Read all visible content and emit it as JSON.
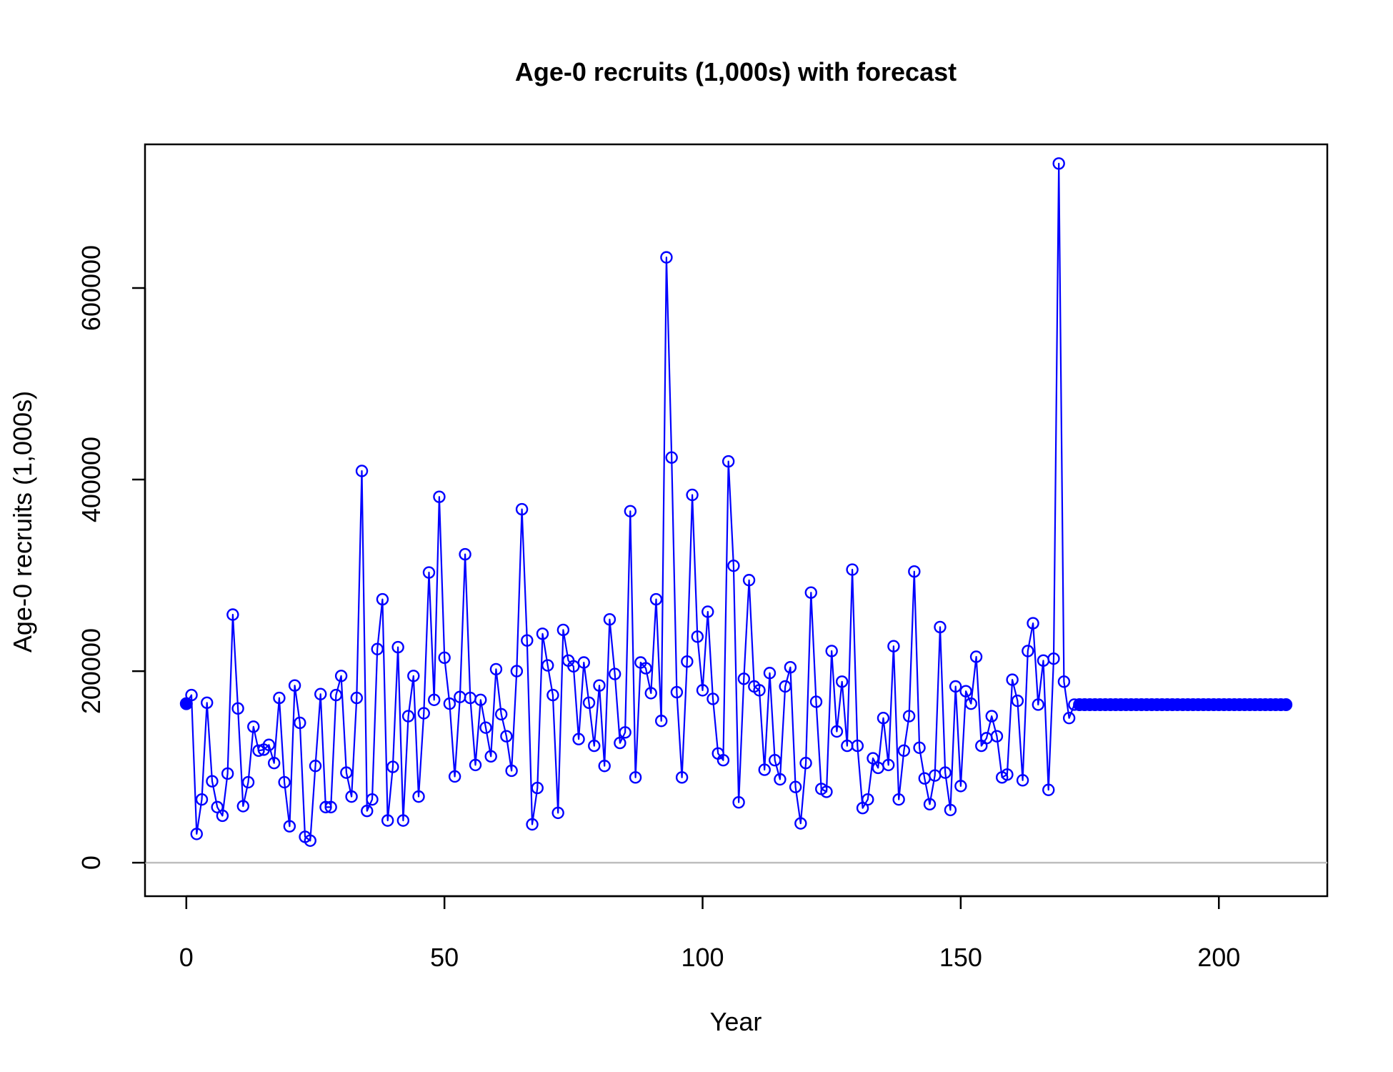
{
  "chart_data": {
    "type": "line",
    "title": "Age-0 recruits (1,000s) with forecast",
    "xlabel": "Year",
    "ylabel": "Age-0 recruits (1,000s)",
    "xlim": [
      -8,
      221
    ],
    "ylim": [
      -35000,
      750000
    ],
    "xticks": [
      0,
      50,
      100,
      150,
      200
    ],
    "yticks": [
      0,
      200000,
      400000,
      600000
    ],
    "xtick_labels": [
      "0",
      "50",
      "100",
      "150",
      "200"
    ],
    "ytick_labels": [
      "0",
      "200000",
      "400000",
      "600000"
    ],
    "grid": false,
    "legend": "none",
    "reference_line": {
      "y": 0,
      "color": "#bebebe"
    },
    "colors": {
      "series": "#0000ff",
      "axis": "#000000",
      "reference": "#bebebe"
    },
    "series": [
      {
        "role": "initial",
        "marker": "filled-circle",
        "x": [
          0
        ],
        "values": [
          166000
        ]
      },
      {
        "role": "observed",
        "marker": "open-circle",
        "x_start": 1,
        "values": [
          175000,
          30000,
          66000,
          167000,
          85000,
          58000,
          49000,
          93000,
          259000,
          161000,
          59000,
          84000,
          142000,
          117000,
          118000,
          123000,
          104000,
          172000,
          84000,
          38000,
          185000,
          146000,
          27000,
          23000,
          101000,
          176000,
          58000,
          58000,
          175000,
          195000,
          94000,
          69000,
          172000,
          409000,
          54000,
          66000,
          223000,
          275000,
          44000,
          100000,
          225000,
          44000,
          153000,
          195000,
          69000,
          156000,
          303000,
          170000,
          382000,
          214000,
          166000,
          90000,
          173000,
          322000,
          172000,
          102000,
          170000,
          141000,
          111000,
          202000,
          155000,
          132000,
          96000,
          200000,
          369000,
          232000,
          40000,
          78000,
          239000,
          206000,
          175000,
          52000,
          243000,
          211000,
          205000,
          129000,
          209000,
          167000,
          122000,
          185000,
          101000,
          254000,
          197000,
          125000,
          136000,
          367000,
          89000,
          209000,
          203000,
          177000,
          275000,
          148000,
          632000,
          423000,
          178000,
          89000,
          210000,
          384000,
          236000,
          180000,
          262000,
          171000,
          114000,
          107000,
          419000,
          310000,
          63000,
          192000,
          295000,
          184000,
          180000,
          97000,
          198000,
          107000,
          87000,
          184000,
          204000,
          79000,
          41000,
          104000,
          282000,
          168000,
          77000,
          74000,
          221000,
          137000,
          189000,
          122000,
          306000,
          122000,
          57000,
          66000,
          109000,
          99000,
          151000,
          102000,
          226000,
          66000,
          117000,
          153000,
          304000,
          120000,
          88000,
          61000,
          91000,
          246000,
          94000,
          55000,
          184000,
          80000,
          179000,
          166000,
          215000,
          122000,
          130000,
          153000,
          132000,
          89000,
          92000,
          191000,
          169000,
          86000,
          221000,
          250000,
          165000,
          211000,
          76000,
          213000,
          730000,
          189000,
          151000,
          165000
        ]
      },
      {
        "role": "forecast",
        "marker": "filled-circle",
        "x_start": 173,
        "x_end": 213,
        "value": 165000
      }
    ]
  }
}
